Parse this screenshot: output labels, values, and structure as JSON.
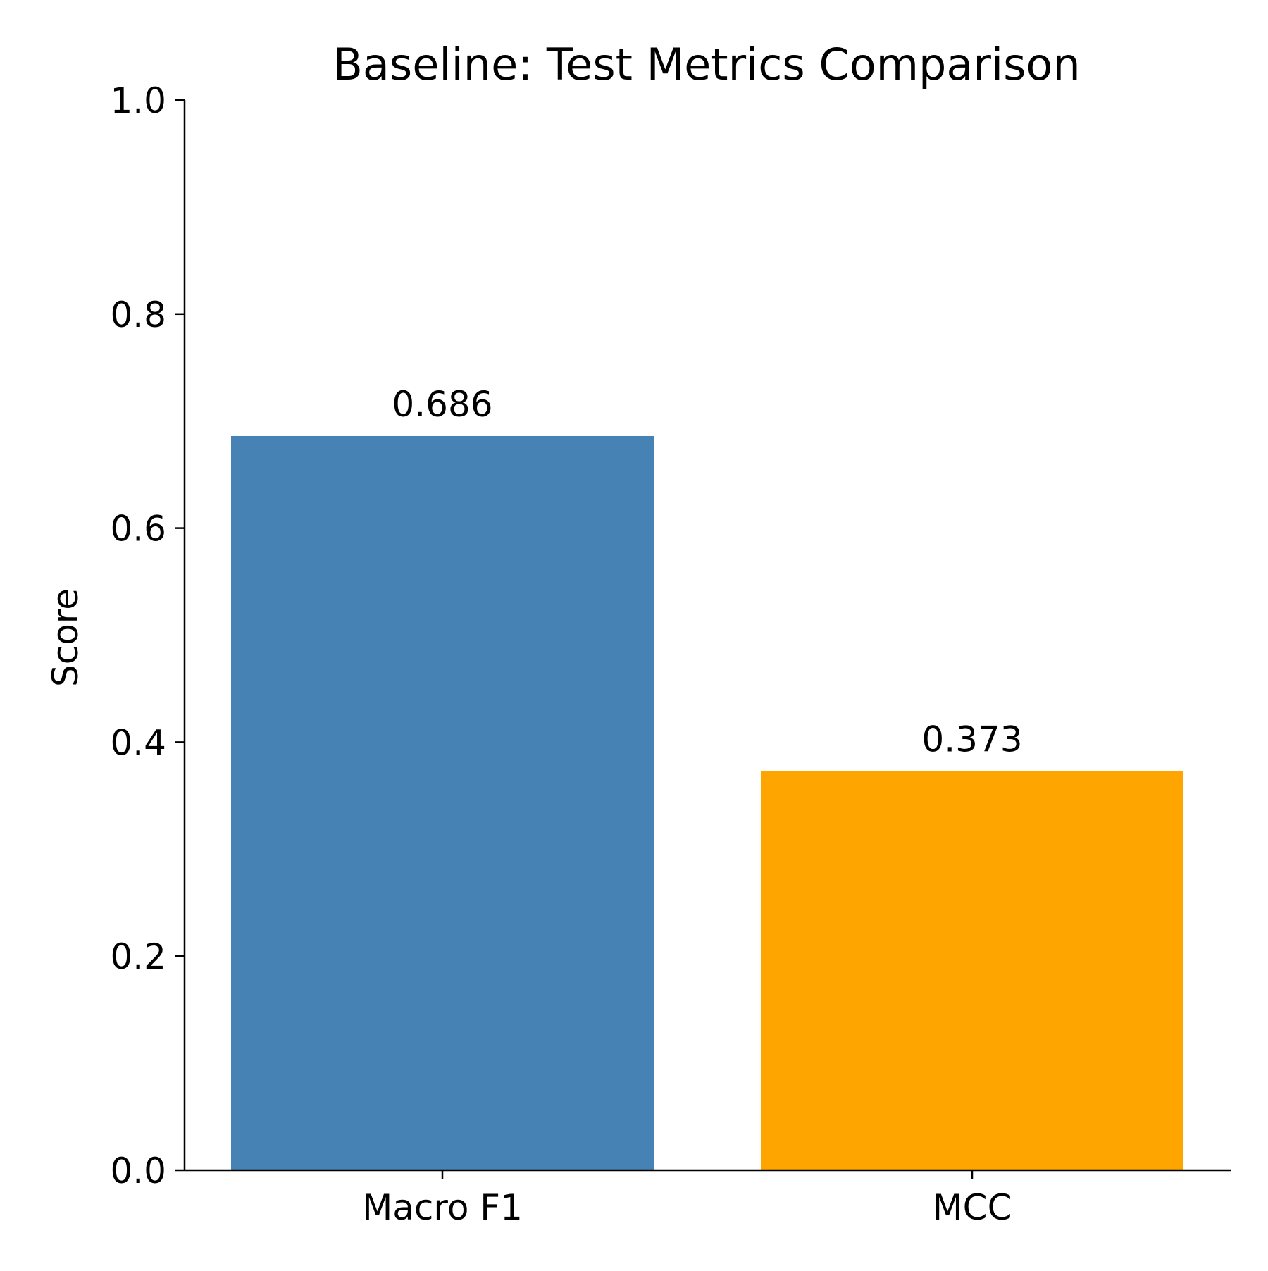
{
  "chart_data": {
    "type": "bar",
    "title": "Baseline: Test Metrics Comparison",
    "xlabel": "",
    "ylabel": "Score",
    "categories": [
      "Macro F1",
      "MCC"
    ],
    "values": [
      0.686,
      0.373
    ],
    "value_labels": [
      "0.686",
      "0.373"
    ],
    "bar_colors": [
      "#4682b4",
      "#ffa500"
    ],
    "ylim": [
      0,
      1
    ],
    "yticks": [
      0,
      0.2,
      0.4,
      0.6,
      0.8,
      1
    ],
    "ytick_labels": [
      "0.0",
      "0.2",
      "0.4",
      "0.6",
      "0.8",
      "1.0"
    ],
    "grid": false,
    "legend": "none"
  }
}
